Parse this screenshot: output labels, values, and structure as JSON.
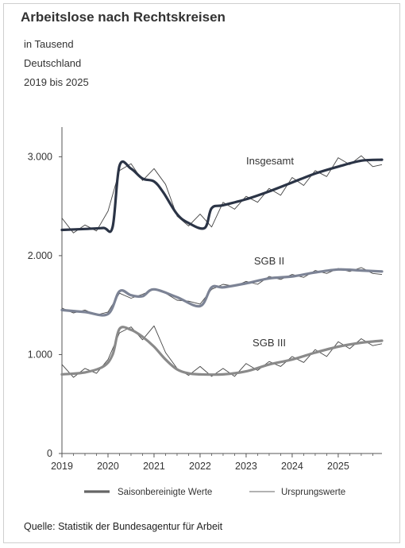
{
  "header": {
    "title": "Arbeitslose nach Rechtskreisen",
    "subtitle_lines": [
      "in Tausend",
      "Deutschland",
      "2019 bis 2025"
    ]
  },
  "source": "Quelle: Statistik der Bundesagentur für Arbeit",
  "colors": {
    "insgesamt": "#2b3446",
    "sgb2": "#7c8395",
    "sgb3": "#8a8a8a",
    "axis": "#555555",
    "raw": "#444444"
  },
  "chart_data": {
    "type": "line",
    "title": "Arbeitslose nach Rechtskreisen",
    "ylabel": "",
    "xlabel": "",
    "ylim": [
      0,
      3300
    ],
    "y_ticks": [
      0,
      1000,
      2000,
      3000
    ],
    "y_tick_labels": [
      "0",
      "1.000",
      "2.000",
      "3.000"
    ],
    "x_ticks": [
      2019,
      2020,
      2021,
      2022,
      2023,
      2024,
      2025
    ],
    "x_tick_labels": [
      "2019",
      "2020",
      "2021",
      "2022",
      "2023",
      "2024",
      "2025"
    ],
    "xlim": [
      2019,
      2025.95
    ],
    "grid": false,
    "legend": {
      "position": "bottom",
      "entries": [
        "Saisonbereinigte Werte",
        "Ursprungswerte"
      ]
    },
    "series_labels": [
      "Insgesamt",
      "SGB II",
      "SGB III"
    ],
    "series": [
      {
        "name": "Insgesamt",
        "seasonally_adjusted": [
          [
            2019,
            2260
          ],
          [
            2019.5,
            2270
          ],
          [
            2019.9,
            2280
          ],
          [
            2020.1,
            2290
          ],
          [
            2020.25,
            2910
          ],
          [
            2020.5,
            2880
          ],
          [
            2020.75,
            2780
          ],
          [
            2021,
            2750
          ],
          [
            2021.2,
            2640
          ],
          [
            2021.5,
            2420
          ],
          [
            2021.75,
            2330
          ],
          [
            2022.1,
            2280
          ],
          [
            2022.25,
            2480
          ],
          [
            2022.5,
            2510
          ],
          [
            2023,
            2570
          ],
          [
            2023.5,
            2650
          ],
          [
            2024,
            2740
          ],
          [
            2024.5,
            2830
          ],
          [
            2025,
            2900
          ],
          [
            2025.5,
            2960
          ],
          [
            2025.95,
            2970
          ]
        ],
        "original": [
          [
            2019,
            2380
          ],
          [
            2019.25,
            2230
          ],
          [
            2019.5,
            2310
          ],
          [
            2019.75,
            2250
          ],
          [
            2020,
            2450
          ],
          [
            2020.25,
            2860
          ],
          [
            2020.5,
            2930
          ],
          [
            2020.75,
            2760
          ],
          [
            2021,
            2880
          ],
          [
            2021.25,
            2720
          ],
          [
            2021.5,
            2400
          ],
          [
            2021.75,
            2300
          ],
          [
            2022,
            2420
          ],
          [
            2022.25,
            2290
          ],
          [
            2022.5,
            2540
          ],
          [
            2022.75,
            2470
          ],
          [
            2023,
            2600
          ],
          [
            2023.25,
            2540
          ],
          [
            2023.5,
            2680
          ],
          [
            2023.75,
            2610
          ],
          [
            2024,
            2790
          ],
          [
            2024.25,
            2710
          ],
          [
            2024.5,
            2860
          ],
          [
            2024.75,
            2800
          ],
          [
            2025,
            2990
          ],
          [
            2025.25,
            2920
          ],
          [
            2025.5,
            3010
          ],
          [
            2025.75,
            2900
          ],
          [
            2025.95,
            2920
          ]
        ]
      },
      {
        "name": "SGB II",
        "seasonally_adjusted": [
          [
            2019,
            1450
          ],
          [
            2019.5,
            1430
          ],
          [
            2020,
            1410
          ],
          [
            2020.25,
            1640
          ],
          [
            2020.5,
            1600
          ],
          [
            2020.75,
            1590
          ],
          [
            2021,
            1660
          ],
          [
            2021.5,
            1580
          ],
          [
            2022,
            1490
          ],
          [
            2022.25,
            1680
          ],
          [
            2022.5,
            1680
          ],
          [
            2023,
            1720
          ],
          [
            2023.5,
            1770
          ],
          [
            2024,
            1790
          ],
          [
            2024.5,
            1830
          ],
          [
            2025,
            1860
          ],
          [
            2025.5,
            1850
          ],
          [
            2025.95,
            1840
          ]
        ],
        "original": [
          [
            2019,
            1470
          ],
          [
            2019.25,
            1420
          ],
          [
            2019.5,
            1450
          ],
          [
            2019.75,
            1400
          ],
          [
            2020,
            1430
          ],
          [
            2020.25,
            1620
          ],
          [
            2020.5,
            1570
          ],
          [
            2020.75,
            1610
          ],
          [
            2021,
            1660
          ],
          [
            2021.25,
            1620
          ],
          [
            2021.5,
            1550
          ],
          [
            2021.75,
            1540
          ],
          [
            2022,
            1510
          ],
          [
            2022.25,
            1660
          ],
          [
            2022.5,
            1710
          ],
          [
            2022.75,
            1690
          ],
          [
            2023,
            1740
          ],
          [
            2023.25,
            1710
          ],
          [
            2023.5,
            1790
          ],
          [
            2023.75,
            1760
          ],
          [
            2024,
            1810
          ],
          [
            2024.25,
            1780
          ],
          [
            2024.5,
            1850
          ],
          [
            2024.75,
            1820
          ],
          [
            2025,
            1870
          ],
          [
            2025.25,
            1840
          ],
          [
            2025.5,
            1880
          ],
          [
            2025.75,
            1820
          ],
          [
            2025.95,
            1810
          ]
        ]
      },
      {
        "name": "SGB III",
        "seasonally_adjusted": [
          [
            2019,
            800
          ],
          [
            2019.5,
            820
          ],
          [
            2019.9,
            880
          ],
          [
            2020.1,
            1000
          ],
          [
            2020.25,
            1260
          ],
          [
            2020.5,
            1250
          ],
          [
            2020.75,
            1180
          ],
          [
            2021,
            1080
          ],
          [
            2021.25,
            950
          ],
          [
            2021.5,
            850
          ],
          [
            2021.75,
            810
          ],
          [
            2022,
            800
          ],
          [
            2022.5,
            800
          ],
          [
            2023,
            830
          ],
          [
            2023.5,
            900
          ],
          [
            2024,
            950
          ],
          [
            2024.5,
            1020
          ],
          [
            2025,
            1080
          ],
          [
            2025.5,
            1120
          ],
          [
            2025.95,
            1140
          ]
        ],
        "original": [
          [
            2019,
            900
          ],
          [
            2019.25,
            770
          ],
          [
            2019.5,
            860
          ],
          [
            2019.75,
            810
          ],
          [
            2020,
            950
          ],
          [
            2020.25,
            1220
          ],
          [
            2020.5,
            1280
          ],
          [
            2020.75,
            1150
          ],
          [
            2021,
            1290
          ],
          [
            2021.25,
            1020
          ],
          [
            2021.5,
            860
          ],
          [
            2021.75,
            790
          ],
          [
            2022,
            880
          ],
          [
            2022.25,
            780
          ],
          [
            2022.5,
            860
          ],
          [
            2022.75,
            780
          ],
          [
            2023,
            910
          ],
          [
            2023.25,
            840
          ],
          [
            2023.5,
            930
          ],
          [
            2023.75,
            880
          ],
          [
            2024,
            980
          ],
          [
            2024.25,
            920
          ],
          [
            2024.5,
            1050
          ],
          [
            2024.75,
            980
          ],
          [
            2025,
            1130
          ],
          [
            2025.25,
            1060
          ],
          [
            2025.5,
            1160
          ],
          [
            2025.75,
            1090
          ],
          [
            2025.95,
            1110
          ]
        ]
      }
    ]
  }
}
